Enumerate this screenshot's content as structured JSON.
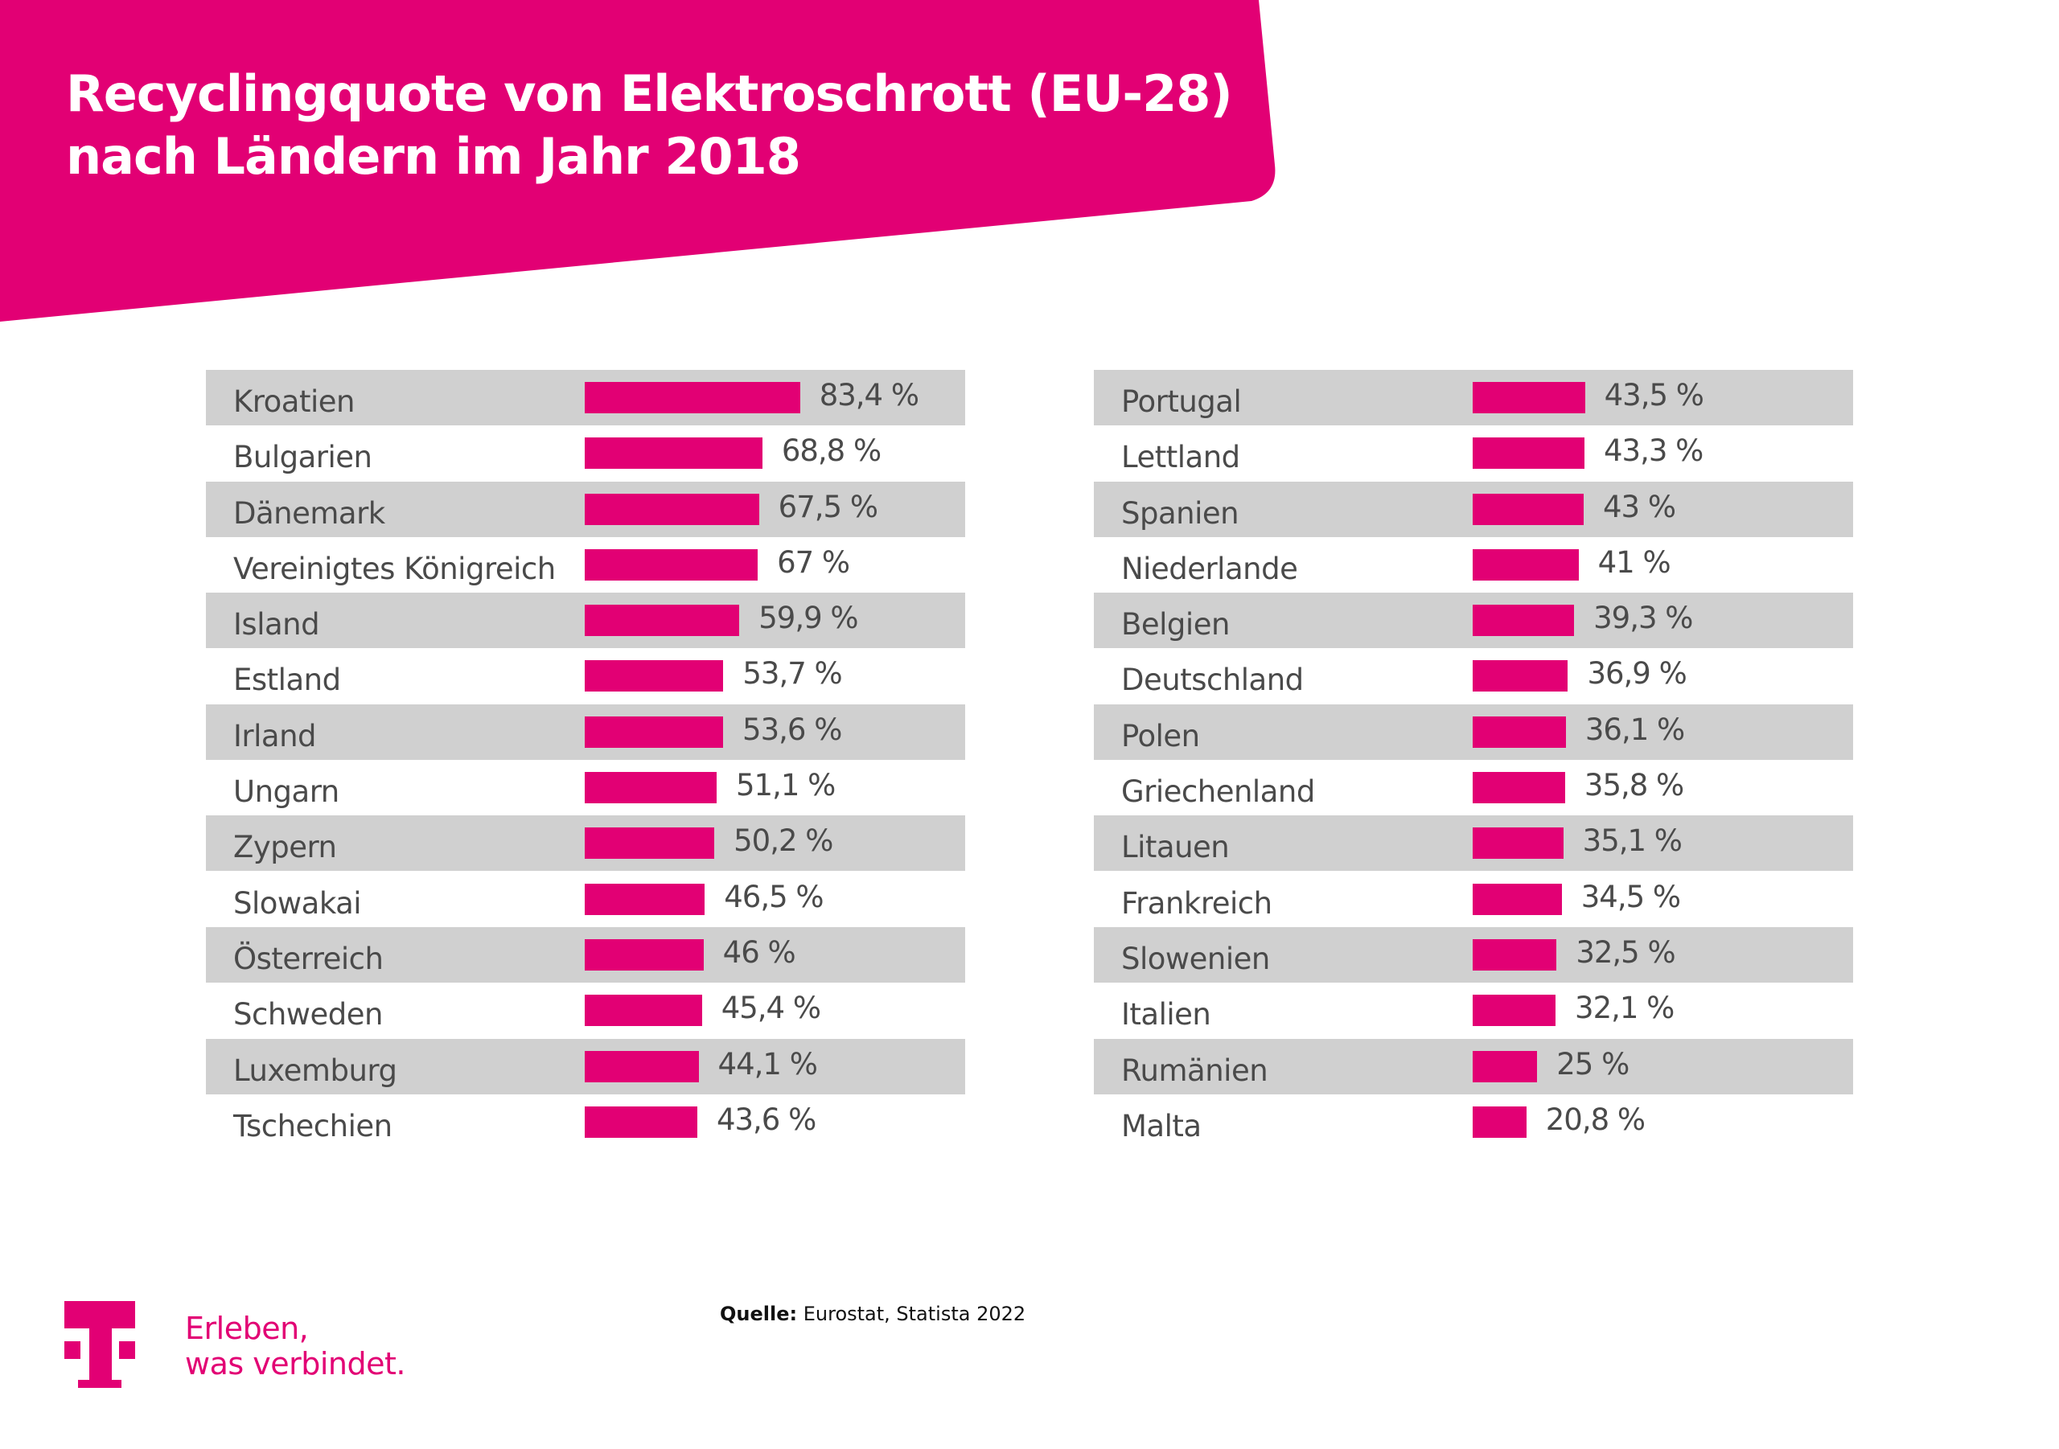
{
  "header": {
    "title_line1": "Recyclingquote von Elektroschrott (EU-28)",
    "title_line2": "nach Ländern im Jahr 2018"
  },
  "colors": {
    "brand_magenta": "#e20074",
    "row_gray": "#d0d0d0",
    "text_gray": "#4a4a4a"
  },
  "chart_data": {
    "type": "bar",
    "orientation": "horizontal",
    "title": "Recyclingquote von Elektroschrott (EU-28) nach Ländern im Jahr 2018",
    "xlabel": "",
    "ylabel": "",
    "unit": "%",
    "xlim": [
      0,
      100
    ],
    "grid": false,
    "legend": "none",
    "categories": [
      "Kroatien",
      "Bulgarien",
      "Dänemark",
      "Vereinigtes Königreich",
      "Island",
      "Estland",
      "Irland",
      "Ungarn",
      "Zypern",
      "Slowakai",
      "Österreich",
      "Schweden",
      "Luxemburg",
      "Tschechien",
      "Portugal",
      "Lettland",
      "Spanien",
      "Niederlande",
      "Belgien",
      "Deutschland",
      "Polen",
      "Griechenland",
      "Litauen",
      "Frankreich",
      "Slowenien",
      "Italien",
      "Rumänien",
      "Malta"
    ],
    "values": [
      83.4,
      68.8,
      67.5,
      67,
      59.9,
      53.7,
      53.6,
      51.1,
      50.2,
      46.5,
      46,
      45.4,
      44.1,
      43.6,
      43.5,
      43.3,
      43,
      41,
      39.3,
      36.9,
      36.1,
      35.8,
      35.1,
      34.5,
      32.5,
      32.1,
      25,
      20.8
    ],
    "value_labels": [
      "83,4 %",
      "68,8 %",
      "67,5 %",
      "67 %",
      "59,9 %",
      "53,7 %",
      "53,6 %",
      "51,1 %",
      "50,2 %",
      "46,5 %",
      "46 %",
      "45,4 %",
      "44,1 %",
      "43,6 %",
      "43,5 %",
      "43,3 %",
      "43 %",
      "41 %",
      "39,3 %",
      "36,9 %",
      "36,1 %",
      "35,8 %",
      "35,1 %",
      "34,5 %",
      "32,5 %",
      "32,1 %",
      "25 %",
      "20,8 %"
    ],
    "columns": [
      {
        "name": "left",
        "rows": [
          {
            "country": "Kroatien",
            "value": 83.4,
            "label": "83,4 %"
          },
          {
            "country": "Bulgarien",
            "value": 68.8,
            "label": "68,8 %"
          },
          {
            "country": "Dänemark",
            "value": 67.5,
            "label": "67,5 %"
          },
          {
            "country": "Vereinigtes Königreich",
            "value": 67,
            "label": "67 %"
          },
          {
            "country": "Island",
            "value": 59.9,
            "label": "59,9 %"
          },
          {
            "country": "Estland",
            "value": 53.7,
            "label": "53,7 %"
          },
          {
            "country": "Irland",
            "value": 53.6,
            "label": "53,6 %"
          },
          {
            "country": "Ungarn",
            "value": 51.1,
            "label": "51,1 %"
          },
          {
            "country": "Zypern",
            "value": 50.2,
            "label": "50,2 %"
          },
          {
            "country": "Slowakai",
            "value": 46.5,
            "label": "46,5 %"
          },
          {
            "country": "Österreich",
            "value": 46,
            "label": "46 %"
          },
          {
            "country": "Schweden",
            "value": 45.4,
            "label": "45,4 %"
          },
          {
            "country": "Luxemburg",
            "value": 44.1,
            "label": "44,1 %"
          },
          {
            "country": "Tschechien",
            "value": 43.6,
            "label": "43,6 %"
          }
        ]
      },
      {
        "name": "right",
        "rows": [
          {
            "country": "Portugal",
            "value": 43.5,
            "label": "43,5 %"
          },
          {
            "country": "Lettland",
            "value": 43.3,
            "label": "43,3 %"
          },
          {
            "country": "Spanien",
            "value": 43,
            "label": "43 %"
          },
          {
            "country": "Niederlande",
            "value": 41,
            "label": "41 %"
          },
          {
            "country": "Belgien",
            "value": 39.3,
            "label": "39,3 %"
          },
          {
            "country": "Deutschland",
            "value": 36.9,
            "label": "36,9 %"
          },
          {
            "country": "Polen",
            "value": 36.1,
            "label": "36,1 %"
          },
          {
            "country": "Griechenland",
            "value": 35.8,
            "label": "35,8 %"
          },
          {
            "country": "Litauen",
            "value": 35.1,
            "label": "35,1 %"
          },
          {
            "country": "Frankreich",
            "value": 34.5,
            "label": "34,5 %"
          },
          {
            "country": "Slowenien",
            "value": 32.5,
            "label": "32,5 %"
          },
          {
            "country": "Italien",
            "value": 32.1,
            "label": "32,1 %"
          },
          {
            "country": "Rumänien",
            "value": 25,
            "label": "25 %"
          },
          {
            "country": "Malta",
            "value": 20.8,
            "label": "20,8 %"
          }
        ]
      }
    ]
  },
  "footer": {
    "logo_icon": "telekom-t-logo",
    "tagline_line1": "Erleben,",
    "tagline_line2": "was verbindet.",
    "source_label": "Quelle:",
    "source_text": " Eurostat, Statista 2022"
  }
}
